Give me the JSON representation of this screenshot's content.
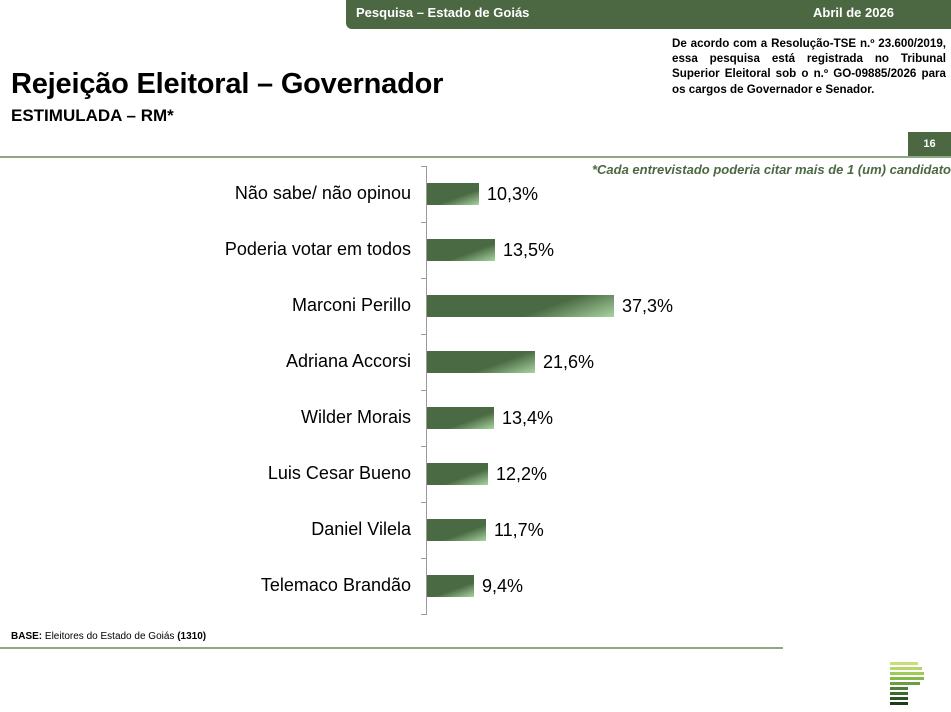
{
  "header": {
    "survey_label": "Pesquisa – Estado de Goiás",
    "date_label": "Abril de 2026"
  },
  "registration_note": "De acordo com a Resolução-TSE n.º 23.600/2019, essa pesquisa está registrada no Tribunal Superior Eleitoral sob o n.º GO-09885/2026 para os cargos de Governador e Senador.",
  "title": "Rejeição Eleitoral – Governador",
  "subtitle": "ESTIMULADA – RM*",
  "page_number": "16",
  "footnote": "*Cada entrevistado poderia citar mais de 1 (um) candidato",
  "base": {
    "label": "BASE:",
    "text": " Eleitores do Estado de Goiás ",
    "count": "(1310)"
  },
  "colors": {
    "brand_green": "#4b6843",
    "bar_dark": "#4a6a43",
    "bar_light": "#a9d4a0",
    "rule_green": "#8fa884"
  },
  "chart_data": {
    "type": "bar",
    "orientation": "horizontal",
    "title": "Rejeição Eleitoral – Governador",
    "subtitle": "ESTIMULADA – RM*",
    "categories": [
      "Não sabe/ não opinou",
      "Poderia votar em todos",
      "Marconi Perillo",
      "Adriana Accorsi",
      "Wilder Morais",
      "Luis Cesar Bueno",
      "Daniel Vilela",
      "Telemaco Brandão"
    ],
    "values": [
      10.3,
      13.5,
      37.3,
      21.6,
      13.4,
      12.2,
      11.7,
      9.4
    ],
    "value_labels": [
      "10,3%",
      "13,5%",
      "37,3%",
      "21,6%",
      "13,4%",
      "12,2%",
      "11,7%",
      "9,4%"
    ],
    "xlabel": "",
    "ylabel": "",
    "unit": "%",
    "grid": false,
    "legend": "none",
    "annotation": "*Cada entrevistado poderia citar mais de 1 (um) candidato"
  }
}
